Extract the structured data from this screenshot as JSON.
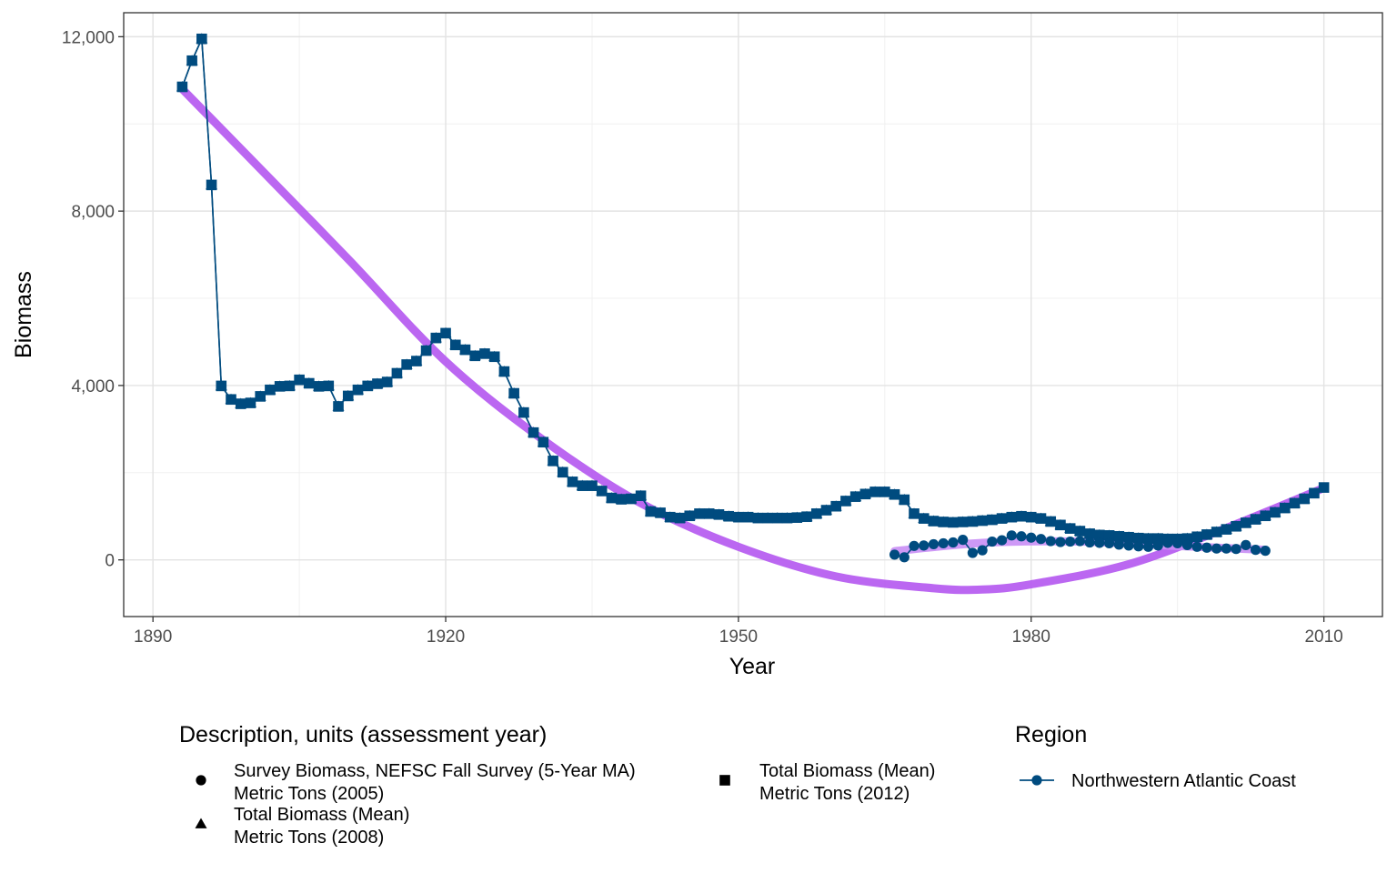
{
  "chart_data": {
    "type": "line",
    "xlabel": "Year",
    "ylabel": "Biomass",
    "xlim": [
      1887,
      2016
    ],
    "ylim": [
      -1300,
      12550
    ],
    "x_ticks": [
      1890,
      1920,
      1950,
      1980,
      2010
    ],
    "x_tick_labels": [
      "1890",
      "1920",
      "1950",
      "1980",
      "2010"
    ],
    "y_ticks": [
      0,
      4000,
      8000,
      12000
    ],
    "y_tick_labels": [
      "0",
      "4,000",
      "8,000",
      "12,000"
    ],
    "grid": true,
    "legend_position": "bottom",
    "series": [
      {
        "description": "Total Biomass (Mean) Metric Tons (2008)",
        "marker": "triangle",
        "color": "#004b7f",
        "x": [
          1893,
          1894,
          1895,
          1896,
          1897,
          1898,
          1899,
          1900,
          1901,
          1902,
          1903,
          1904,
          1905,
          1906,
          1907,
          1908,
          1909,
          1910,
          1911,
          1912,
          1913,
          1914,
          1915,
          1916,
          1917,
          1918,
          1919,
          1920,
          1921,
          1922,
          1923,
          1924,
          1925,
          1926,
          1927,
          1928,
          1929,
          1930,
          1931,
          1932,
          1933,
          1934,
          1935,
          1936,
          1937,
          1938,
          1939,
          1940,
          1941,
          1942,
          1943,
          1944,
          1945,
          1946,
          1947,
          1948,
          1949,
          1950,
          1951,
          1952,
          1953,
          1954,
          1955,
          1956,
          1957,
          1958,
          1959,
          1960,
          1961,
          1962,
          1963,
          1964,
          1965,
          1966,
          1967,
          1968,
          1969,
          1970,
          1971,
          1972,
          1973,
          1974,
          1975,
          1976,
          1977,
          1978,
          1979,
          1980,
          1981,
          1982,
          1983,
          1984,
          1985,
          1986,
          1987,
          1988,
          1989,
          1990,
          1991,
          1992,
          1993,
          1994,
          1995,
          1996,
          1997,
          1998,
          1999,
          2000,
          2001,
          2002,
          2003,
          2004,
          2005,
          2006,
          2007,
          2008
        ],
        "y": [
          10850,
          11450,
          11950,
          8600,
          3990,
          3680,
          3580,
          3600,
          3750,
          3900,
          3980,
          3990,
          4130,
          4050,
          3980,
          3990,
          3520,
          3760,
          3900,
          3990,
          4040,
          4080,
          4280,
          4480,
          4560,
          4800,
          5090,
          5200,
          4930,
          4820,
          4680,
          4730,
          4660,
          4320,
          3820,
          3380,
          2920,
          2700,
          2270,
          2010,
          1790,
          1700,
          1700,
          1580,
          1420,
          1390,
          1400,
          1470,
          1110,
          1080,
          980,
          960,
          1010,
          1060,
          1060,
          1040,
          1000,
          980,
          980,
          960,
          960,
          960,
          960,
          970,
          990,
          1060,
          1140,
          1230,
          1350,
          1450,
          1510,
          1560,
          1560,
          1500,
          1380,
          1060,
          950,
          890,
          870,
          860,
          870,
          880,
          900,
          920,
          950,
          980,
          1000,
          980,
          950,
          880,
          800,
          720,
          660,
          600,
          570,
          560,
          540,
          520,
          500,
          490,
          490,
          480,
          480,
          490,
          530,
          580,
          640,
          700,
          770,
          850,
          930,
          1010,
          1090,
          1190,
          1300,
          1400
        ]
      },
      {
        "description": "Total Biomass (Mean) Metric Tons (2012)",
        "marker": "square",
        "color": "#004b7f",
        "x": [
          1893,
          1894,
          1895,
          1896,
          1897,
          1898,
          1899,
          1900,
          1901,
          1902,
          1903,
          1904,
          1905,
          1906,
          1907,
          1908,
          1909,
          1910,
          1911,
          1912,
          1913,
          1914,
          1915,
          1916,
          1917,
          1918,
          1919,
          1920,
          1921,
          1922,
          1923,
          1924,
          1925,
          1926,
          1927,
          1928,
          1929,
          1930,
          1931,
          1932,
          1933,
          1934,
          1935,
          1936,
          1937,
          1938,
          1939,
          1940,
          1941,
          1942,
          1943,
          1944,
          1945,
          1946,
          1947,
          1948,
          1949,
          1950,
          1951,
          1952,
          1953,
          1954,
          1955,
          1956,
          1957,
          1958,
          1959,
          1960,
          1961,
          1962,
          1963,
          1964,
          1965,
          1966,
          1967,
          1968,
          1969,
          1970,
          1971,
          1972,
          1973,
          1974,
          1975,
          1976,
          1977,
          1978,
          1979,
          1980,
          1981,
          1982,
          1983,
          1984,
          1985,
          1986,
          1987,
          1988,
          1989,
          1990,
          1991,
          1992,
          1993,
          1994,
          1995,
          1996,
          1997,
          1998,
          1999,
          2000,
          2001,
          2002,
          2003,
          2004,
          2005,
          2006,
          2007,
          2008,
          2009,
          2010
        ],
        "y": [
          10850,
          11450,
          11950,
          8600,
          3990,
          3680,
          3580,
          3600,
          3750,
          3900,
          3980,
          3990,
          4130,
          4050,
          3980,
          3990,
          3520,
          3760,
          3900,
          3990,
          4040,
          4080,
          4280,
          4480,
          4560,
          4800,
          5090,
          5200,
          4930,
          4820,
          4680,
          4730,
          4660,
          4320,
          3820,
          3380,
          2920,
          2700,
          2270,
          2010,
          1790,
          1700,
          1700,
          1580,
          1420,
          1390,
          1400,
          1470,
          1110,
          1080,
          980,
          960,
          1010,
          1060,
          1060,
          1040,
          1000,
          980,
          980,
          960,
          960,
          960,
          960,
          970,
          990,
          1060,
          1140,
          1230,
          1350,
          1450,
          1510,
          1560,
          1560,
          1500,
          1380,
          1060,
          950,
          890,
          870,
          860,
          870,
          880,
          900,
          920,
          950,
          980,
          1000,
          980,
          950,
          880,
          800,
          720,
          660,
          600,
          570,
          560,
          540,
          520,
          500,
          490,
          490,
          480,
          480,
          490,
          530,
          580,
          640,
          700,
          770,
          850,
          930,
          1010,
          1090,
          1190,
          1300,
          1400,
          1530,
          1660
        ]
      },
      {
        "description": "Survey Biomass, NEFSC Fall Survey (5-Year MA) Metric Tons (2005)",
        "marker": "circle",
        "color": "#004b7f",
        "x": [
          1966,
          1967,
          1968,
          1969,
          1970,
          1971,
          1972,
          1973,
          1974,
          1975,
          1976,
          1977,
          1978,
          1979,
          1980,
          1981,
          1982,
          1983,
          1984,
          1985,
          1986,
          1987,
          1988,
          1989,
          1990,
          1991,
          1992,
          1993,
          1994,
          1995,
          1996,
          1997,
          1998,
          1999,
          2000,
          2001,
          2002,
          2003,
          2004
        ],
        "y": [
          120,
          60,
          320,
          330,
          360,
          380,
          400,
          460,
          160,
          220,
          420,
          450,
          560,
          540,
          510,
          480,
          430,
          410,
          420,
          430,
          400,
          390,
          380,
          350,
          330,
          310,
          300,
          330,
          390,
          380,
          340,
          300,
          280,
          260,
          260,
          250,
          340,
          230,
          210
        ]
      }
    ],
    "trend_lines": [
      {
        "color": "#b456f0",
        "x": [
          1893,
          1900,
          1910,
          1920,
          1930,
          1940,
          1950,
          1960,
          1970,
          1975,
          1980,
          1990,
          2000,
          2010
        ],
        "y": [
          10800,
          9200,
          6900,
          4550,
          2750,
          1300,
          300,
          -380,
          -650,
          -680,
          -560,
          -100,
          730,
          1650
        ]
      },
      {
        "color": "#c98ef5",
        "x": [
          1966,
          1975,
          1985,
          1995,
          2004
        ],
        "y": [
          200,
          390,
          420,
          320,
          230
        ]
      }
    ],
    "legend": {
      "description_title": "Description, units (assessment year)",
      "description_items": [
        {
          "shape": "circle",
          "line1": "Survey Biomass, NEFSC Fall Survey (5-Year MA)",
          "line2": "Metric Tons (2005)"
        },
        {
          "shape": "triangle",
          "line1": "Total Biomass (Mean)",
          "line2": "Metric Tons (2008)"
        },
        {
          "shape": "square",
          "line1": "Total Biomass (Mean)",
          "line2": "Metric Tons (2012)"
        }
      ],
      "region_title": "Region",
      "region_items": [
        {
          "label": "Northwestern Atlantic Coast",
          "color": "#004b7f"
        }
      ]
    }
  }
}
